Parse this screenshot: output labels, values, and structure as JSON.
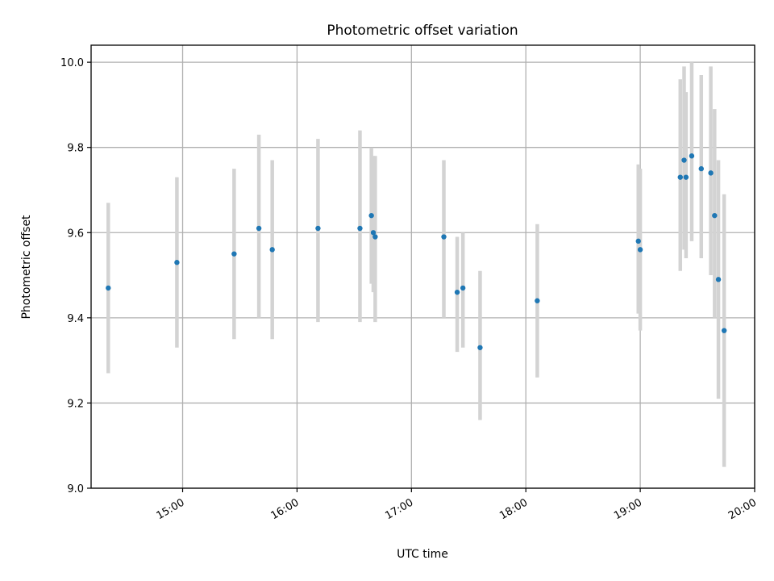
{
  "chart_data": {
    "type": "scatter",
    "title": "Photometric offset variation",
    "xlabel": "UTC time",
    "ylabel": "Photometric offset",
    "x_unit": "UTC time (HH:MM)",
    "xlim": [
      "14:12",
      "20:00"
    ],
    "ylim": [
      9.0,
      10.04
    ],
    "xticks": [
      "15:00",
      "16:00",
      "17:00",
      "18:00",
      "19:00",
      "20:00"
    ],
    "yticks": [
      "9.0",
      "9.2",
      "9.4",
      "9.6",
      "9.8",
      "10.0"
    ],
    "grid": true,
    "points": [
      {
        "x": "14:21",
        "y": 9.47,
        "ylow": 9.27,
        "yhigh": 9.67
      },
      {
        "x": "14:57",
        "y": 9.53,
        "ylow": 9.33,
        "yhigh": 9.73
      },
      {
        "x": "15:27",
        "y": 9.55,
        "ylow": 9.35,
        "yhigh": 9.75
      },
      {
        "x": "15:40",
        "y": 9.61,
        "ylow": 9.4,
        "yhigh": 9.83
      },
      {
        "x": "15:47",
        "y": 9.56,
        "ylow": 9.35,
        "yhigh": 9.77
      },
      {
        "x": "16:11",
        "y": 9.61,
        "ylow": 9.39,
        "yhigh": 9.82
      },
      {
        "x": "16:33",
        "y": 9.61,
        "ylow": 9.39,
        "yhigh": 9.84
      },
      {
        "x": "16:39",
        "y": 9.64,
        "ylow": 9.48,
        "yhigh": 9.8
      },
      {
        "x": "16:40",
        "y": 9.6,
        "ylow": 9.46,
        "yhigh": 9.78
      },
      {
        "x": "16:41",
        "y": 9.59,
        "ylow": 9.39,
        "yhigh": 9.78
      },
      {
        "x": "17:17",
        "y": 9.59,
        "ylow": 9.4,
        "yhigh": 9.77
      },
      {
        "x": "17:24",
        "y": 9.46,
        "ylow": 9.32,
        "yhigh": 9.59
      },
      {
        "x": "17:27",
        "y": 9.47,
        "ylow": 9.33,
        "yhigh": 9.6
      },
      {
        "x": "17:36",
        "y": 9.33,
        "ylow": 9.16,
        "yhigh": 9.51
      },
      {
        "x": "18:06",
        "y": 9.44,
        "ylow": 9.26,
        "yhigh": 9.62
      },
      {
        "x": "18:59",
        "y": 9.58,
        "ylow": 9.41,
        "yhigh": 9.76
      },
      {
        "x": "19:00",
        "y": 9.56,
        "ylow": 9.37,
        "yhigh": 9.75
      },
      {
        "x": "19:21",
        "y": 9.73,
        "ylow": 9.51,
        "yhigh": 9.96
      },
      {
        "x": "19:23",
        "y": 9.77,
        "ylow": 9.56,
        "yhigh": 9.99
      },
      {
        "x": "19:24",
        "y": 9.73,
        "ylow": 9.54,
        "yhigh": 9.93
      },
      {
        "x": "19:27",
        "y": 9.78,
        "ylow": 9.58,
        "yhigh": 10.0
      },
      {
        "x": "19:32",
        "y": 9.75,
        "ylow": 9.54,
        "yhigh": 9.97
      },
      {
        "x": "19:37",
        "y": 9.74,
        "ylow": 9.5,
        "yhigh": 9.99
      },
      {
        "x": "19:39",
        "y": 9.64,
        "ylow": 9.4,
        "yhigh": 9.89
      },
      {
        "x": "19:41",
        "y": 9.49,
        "ylow": 9.21,
        "yhigh": 9.77
      },
      {
        "x": "19:44",
        "y": 9.37,
        "ylow": 9.05,
        "yhigh": 9.69
      }
    ],
    "colors": {
      "marker": "#1f77b4",
      "errorbar": "#d3d3d3",
      "grid": "#b0b0b0",
      "axes": "#000000",
      "background": "#ffffff"
    }
  }
}
